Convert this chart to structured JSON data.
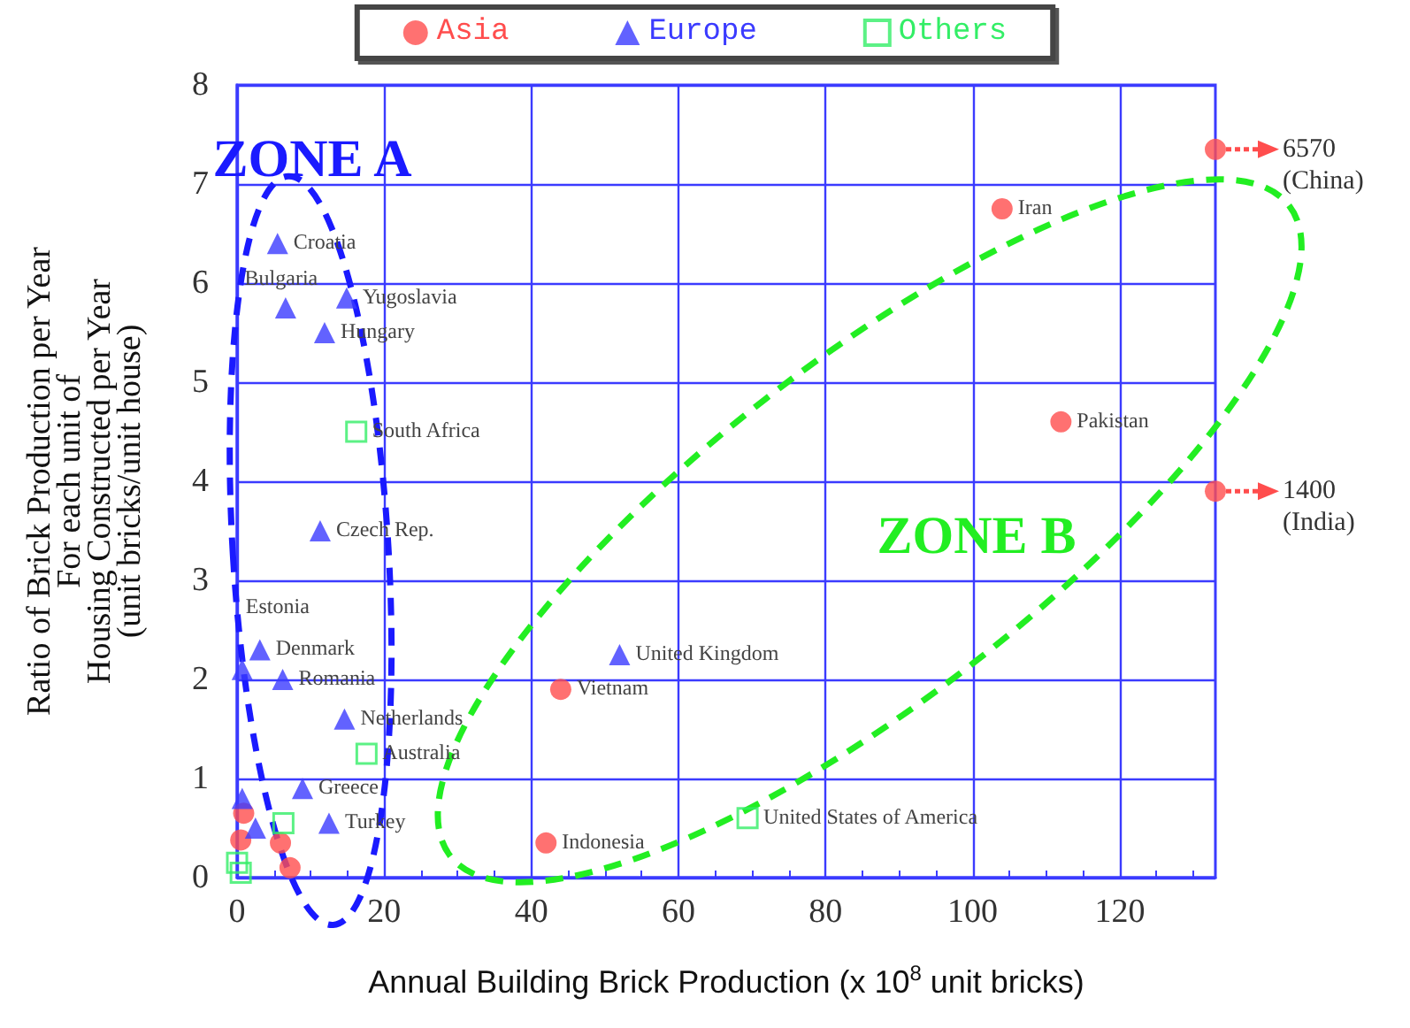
{
  "chart_data": {
    "type": "scatter",
    "xlabel": "Annual Building Brick Production (x 10$^{8}$ unit bricks)",
    "ylabel": "Ratio of Brick Production per Year\nFor each unit of\nHousing Constructed per Year\n(unit bricks/unit house)",
    "xlim": [
      0,
      133
    ],
    "xticks": [
      0,
      {
        "value": 5,
        "label": null
      },
      {
        "value": 10,
        "label": null
      },
      {
        "value": 15,
        "label": null
      },
      20,
      {
        "value": 25,
        "label": null
      },
      {
        "value": 30,
        "label": null
      },
      {
        "value": 35,
        "label": null
      },
      40,
      {
        "value": 45,
        "label": null
      },
      {
        "value": 50,
        "label": null
      },
      {
        "value": 55,
        "label": null
      },
      60,
      {
        "value": 65,
        "label": null
      },
      {
        "value": 70,
        "label": null
      },
      {
        "value": 75,
        "label": null
      },
      80,
      {
        "value": 85,
        "label": null
      },
      {
        "value": 90,
        "label": null
      },
      {
        "value": 95,
        "label": null
      },
      100,
      {
        "value": 105,
        "label": null
      },
      {
        "value": 110,
        "label": null
      },
      {
        "value": 115,
        "label": null
      },
      120,
      {
        "value": 125,
        "label": null
      },
      {
        "value": 130,
        "label": null
      }
    ],
    "ylim": [
      0,
      8
    ],
    "yticks": [
      0,
      1,
      2,
      3,
      4,
      5,
      6,
      7,
      8
    ],
    "grid": true,
    "legend": "top",
    "series": [
      {
        "name": "Asia",
        "color": "#ff4d4d",
        "marker": "circle",
        "x": [
          133,
          104,
          112,
          133,
          44,
          42,
          0.9,
          0.5,
          5.9,
          7.2
        ],
        "values": [
          7.35,
          6.75,
          4.6,
          3.9,
          1.9,
          0.35,
          0.65,
          0.38,
          0.35,
          0.1
        ]
      },
      {
        "name": "Europe",
        "color": "#3b3bff",
        "marker": "triangle",
        "x": [
          5.5,
          6.6,
          14.9,
          11.9,
          11.3,
          3.1,
          0.7,
          6.2,
          14.6,
          8.9,
          12.5,
          0.7,
          2.5,
          52
        ],
        "values": [
          6.4,
          5.75,
          5.85,
          5.5,
          3.5,
          2.3,
          2.1,
          2.0,
          1.6,
          0.9,
          0.55,
          0.8,
          0.5,
          2.25
        ]
      },
      {
        "name": "Others",
        "color": "#33ee66",
        "marker": "square",
        "x": [
          16.2,
          17.6,
          6.3,
          69.4,
          0,
          0.5
        ],
        "values": [
          4.5,
          1.25,
          0.55,
          0.6,
          0.15,
          0.05
        ]
      }
    ],
    "annotations": [
      "ZONE A",
      "ZONE B",
      {
        "text": "6570\n(China)",
        "x": 133,
        "y": 7.35
      },
      {
        "text": "1400\n(India)",
        "x": 133,
        "y": 3.9
      },
      {
        "text": "Iran",
        "x": 104,
        "y": 6.75
      },
      {
        "text": "Pakistan",
        "x": 112,
        "y": 4.6
      },
      {
        "text": "Vietnam",
        "x": 44,
        "y": 1.9
      },
      {
        "text": "Indonesia",
        "x": 42,
        "y": 0.35
      },
      {
        "text": "Croatia",
        "x": 5.5,
        "y": 6.4
      },
      {
        "text": "Bulgaria",
        "x": 6.6,
        "y": 5.75
      },
      {
        "text": "Yugoslavia",
        "x": 14.9,
        "y": 5.85
      },
      {
        "text": "Hungary",
        "x": 11.9,
        "y": 5.5
      },
      {
        "text": "Czech Rep.",
        "x": 11.3,
        "y": 3.5
      },
      {
        "text": "Denmark",
        "x": 3.1,
        "y": 2.3
      },
      {
        "text": "Estonia",
        "x": 0.7,
        "y": 2.1
      },
      {
        "text": "Romania",
        "x": 6.2,
        "y": 2.0
      },
      {
        "text": "Netherlands",
        "x": 14.6,
        "y": 1.6
      },
      {
        "text": "Greece",
        "x": 8.9,
        "y": 0.9
      },
      {
        "text": "Turkey",
        "x": 12.5,
        "y": 0.55
      },
      {
        "text": "United Kingdom",
        "x": 52,
        "y": 2.25
      },
      {
        "text": "South Africa",
        "x": 16.2,
        "y": 4.5
      },
      {
        "text": "Australia",
        "x": 17.6,
        "y": 1.25
      },
      {
        "text": "United States of America",
        "x": 69.4,
        "y": 0.6
      }
    ]
  }
}
